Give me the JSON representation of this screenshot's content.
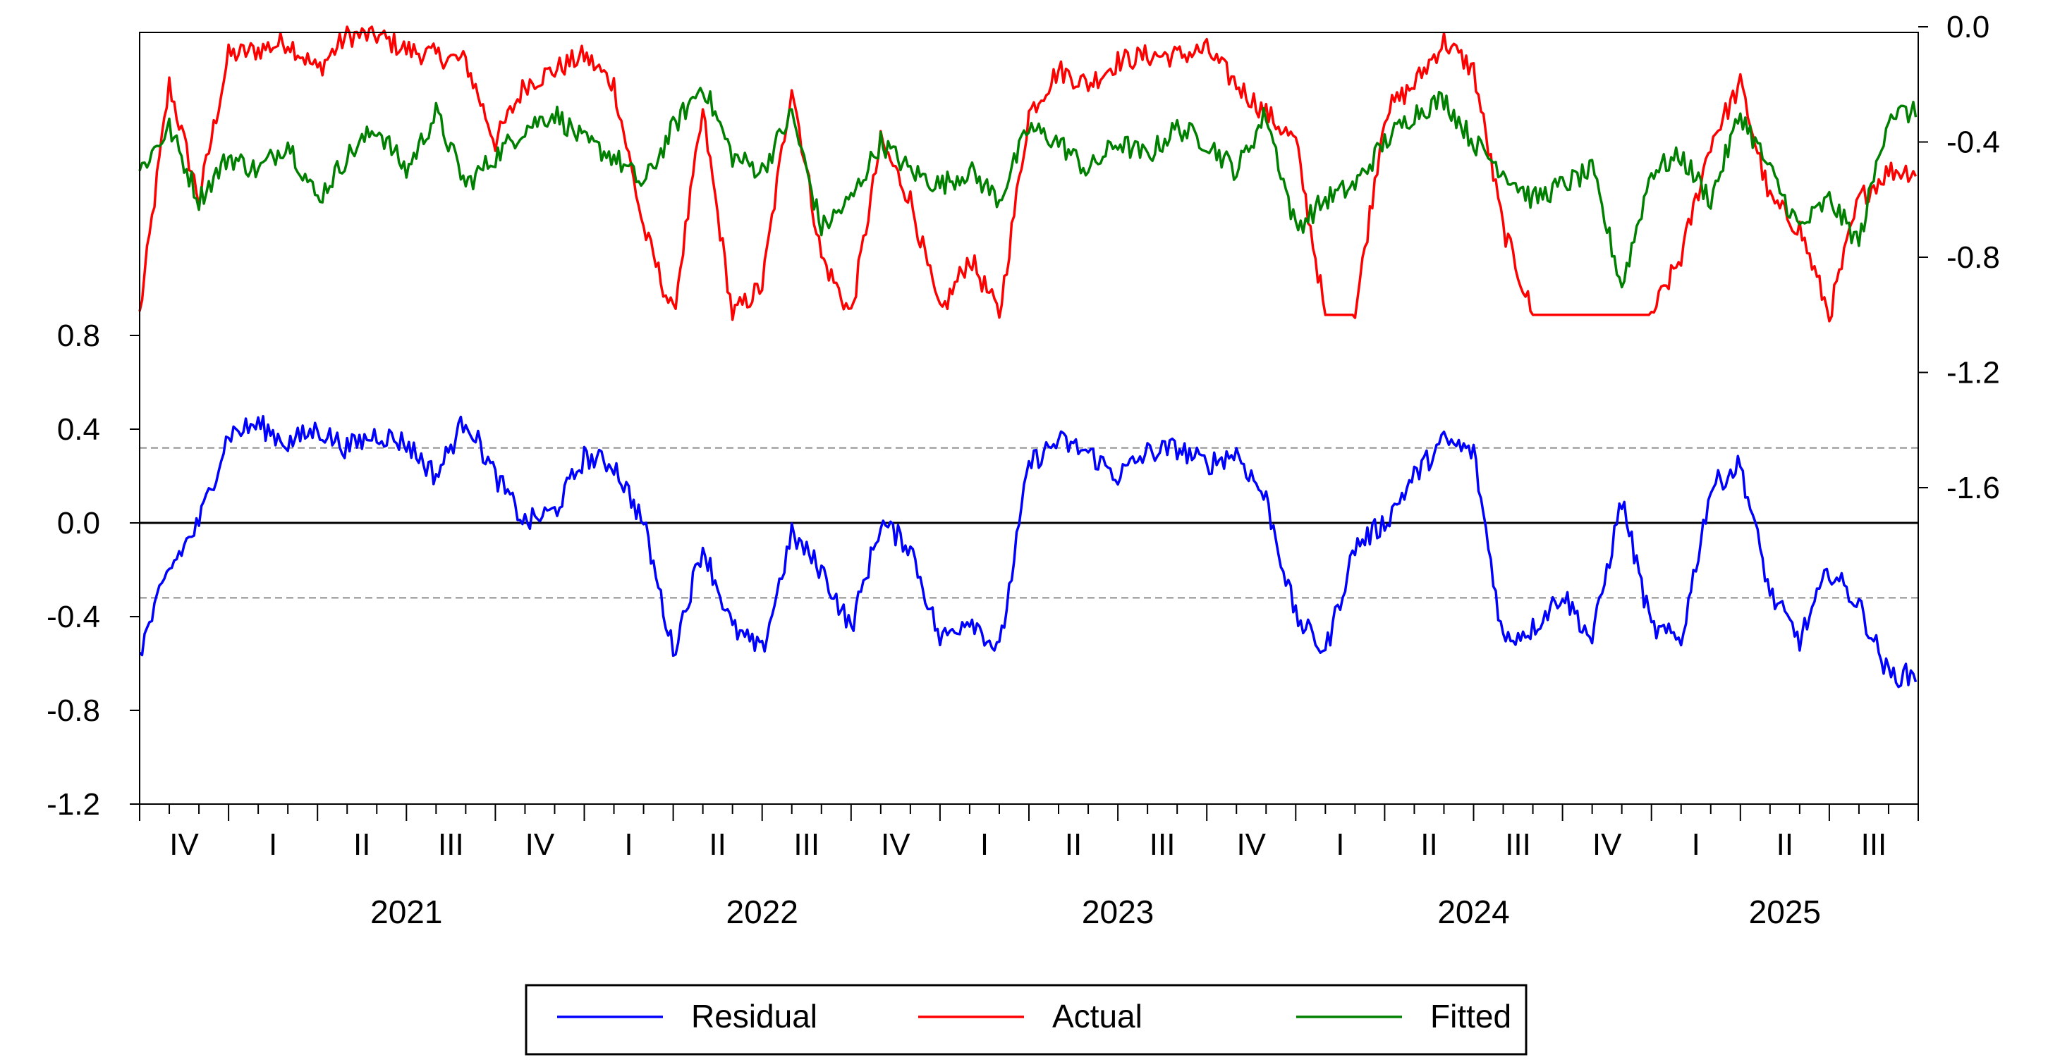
{
  "chart_data": {
    "type": "line",
    "title": "",
    "x_axis": {
      "quarter_labels": [
        "IV",
        "I",
        "II",
        "III",
        "IV",
        "I",
        "II",
        "III",
        "IV",
        "I",
        "II",
        "III",
        "IV",
        "I",
        "II",
        "III",
        "IV",
        "I",
        "II",
        "III"
      ],
      "year_labels": [
        "2021",
        "2022",
        "2023",
        "2024",
        "2025"
      ],
      "start": "2020-10",
      "end": "2025-09"
    },
    "left_axis": {
      "ticks": [
        "0.8",
        "0.4",
        "0.0",
        "-0.4",
        "-0.8",
        "-1.2"
      ],
      "range": [
        -1.2,
        0.8
      ],
      "applies_to": "Residual"
    },
    "right_axis": {
      "ticks": [
        "0.0",
        "-0.4",
        "-0.8",
        "-1.2",
        "-1.6"
      ],
      "range": [
        -1.6,
        0.0
      ],
      "applies_to": [
        "Actual",
        "Fitted"
      ]
    },
    "reference_lines": {
      "zero": 0.0,
      "std_band": [
        0.32,
        -0.32
      ]
    },
    "legend": {
      "position": "bottom-center"
    },
    "series": [
      {
        "name": "Residual",
        "color": "#0000ff",
        "axis": "left",
        "x": [
          "2020-10",
          "2020-11",
          "2020-12",
          "2021-01",
          "2021-02",
          "2021-03",
          "2021-04",
          "2021-05",
          "2021-06",
          "2021-07",
          "2021-08",
          "2021-09",
          "2021-10",
          "2021-11",
          "2021-12",
          "2022-01",
          "2022-02",
          "2022-03",
          "2022-04",
          "2022-05",
          "2022-06",
          "2022-07",
          "2022-08",
          "2022-09",
          "2022-10",
          "2022-11",
          "2022-12",
          "2023-01",
          "2023-02",
          "2023-03",
          "2023-04",
          "2023-05",
          "2023-06",
          "2023-07",
          "2023-08",
          "2023-09",
          "2023-10",
          "2023-11",
          "2023-12",
          "2024-01",
          "2024-02",
          "2024-03",
          "2024-04",
          "2024-05",
          "2024-06",
          "2024-07",
          "2024-08",
          "2024-09",
          "2024-10",
          "2024-11",
          "2024-12",
          "2025-01",
          "2025-02",
          "2025-03",
          "2025-04",
          "2025-05",
          "2025-06",
          "2025-07",
          "2025-08",
          "2025-09"
        ],
        "values": [
          -0.55,
          -0.2,
          0.0,
          0.38,
          0.42,
          0.34,
          0.4,
          0.32,
          0.38,
          0.34,
          0.2,
          0.45,
          0.2,
          0.0,
          0.05,
          0.28,
          0.25,
          0.0,
          -0.55,
          -0.1,
          -0.45,
          -0.55,
          -0.05,
          -0.2,
          -0.45,
          0.0,
          -0.1,
          -0.5,
          -0.4,
          -0.55,
          0.25,
          0.35,
          0.3,
          0.2,
          0.3,
          0.32,
          0.25,
          0.3,
          0.1,
          -0.4,
          -0.55,
          -0.1,
          0.0,
          0.2,
          0.35,
          0.3,
          -0.5,
          -0.45,
          -0.3,
          -0.5,
          0.1,
          -0.45,
          -0.5,
          0.15,
          0.25,
          -0.3,
          -0.5,
          -0.2,
          -0.35,
          -0.65
        ]
      },
      {
        "name": "Actual",
        "color": "#ff0000",
        "axis": "right",
        "x": [
          "2020-10",
          "2020-11",
          "2020-12",
          "2021-01",
          "2021-02",
          "2021-03",
          "2021-04",
          "2021-05",
          "2021-06",
          "2021-07",
          "2021-08",
          "2021-09",
          "2021-10",
          "2021-11",
          "2021-12",
          "2022-01",
          "2022-02",
          "2022-03",
          "2022-04",
          "2022-05",
          "2022-06",
          "2022-07",
          "2022-08",
          "2022-09",
          "2022-10",
          "2022-11",
          "2022-12",
          "2023-01",
          "2023-02",
          "2023-03",
          "2023-04",
          "2023-05",
          "2023-06",
          "2023-07",
          "2023-08",
          "2023-09",
          "2023-10",
          "2023-11",
          "2023-12",
          "2024-01",
          "2024-02",
          "2024-03",
          "2024-04",
          "2024-05",
          "2024-06",
          "2024-07",
          "2024-08",
          "2024-09",
          "2024-10",
          "2024-11",
          "2024-12",
          "2025-01",
          "2025-02",
          "2025-03",
          "2025-04",
          "2025-05",
          "2025-06",
          "2025-07",
          "2025-08",
          "2025-09"
        ],
        "values": [
          -1.0,
          -0.2,
          -0.6,
          -0.1,
          -0.08,
          -0.05,
          -0.15,
          -0.03,
          -0.03,
          -0.08,
          -0.1,
          -0.12,
          -0.4,
          -0.2,
          -0.15,
          -0.1,
          -0.2,
          -0.7,
          -1.0,
          -0.3,
          -1.0,
          -0.9,
          -0.2,
          -0.8,
          -1.0,
          -0.4,
          -0.6,
          -1.0,
          -0.8,
          -1.0,
          -0.3,
          -0.15,
          -0.2,
          -0.12,
          -0.1,
          -0.1,
          -0.08,
          -0.2,
          -0.3,
          -0.4,
          -1.0,
          -1.0,
          -0.3,
          -0.2,
          -0.05,
          -0.15,
          -0.7,
          -1.0,
          -1.0,
          -1.0,
          -1.0,
          -1.0,
          -0.8,
          -0.4,
          -0.2,
          -0.6,
          -0.7,
          -1.0,
          -0.6,
          -0.5
        ]
      },
      {
        "name": "Fitted",
        "color": "#008000",
        "axis": "right",
        "x": [
          "2020-10",
          "2020-11",
          "2020-12",
          "2021-01",
          "2021-02",
          "2021-03",
          "2021-04",
          "2021-05",
          "2021-06",
          "2021-07",
          "2021-08",
          "2021-09",
          "2021-10",
          "2021-11",
          "2021-12",
          "2022-01",
          "2022-02",
          "2022-03",
          "2022-04",
          "2022-05",
          "2022-06",
          "2022-07",
          "2022-08",
          "2022-09",
          "2022-10",
          "2022-11",
          "2022-12",
          "2023-01",
          "2023-02",
          "2023-03",
          "2023-04",
          "2023-05",
          "2023-06",
          "2023-07",
          "2023-08",
          "2023-09",
          "2023-10",
          "2023-11",
          "2023-12",
          "2024-01",
          "2024-02",
          "2024-03",
          "2024-04",
          "2024-05",
          "2024-06",
          "2024-07",
          "2024-08",
          "2024-09",
          "2024-10",
          "2024-11",
          "2024-12",
          "2025-01",
          "2025-02",
          "2025-03",
          "2025-04",
          "2025-05",
          "2025-06",
          "2025-07",
          "2025-08",
          "2025-09"
        ],
        "values": [
          -0.5,
          -0.35,
          -0.6,
          -0.45,
          -0.5,
          -0.4,
          -0.6,
          -0.45,
          -0.35,
          -0.5,
          -0.3,
          -0.55,
          -0.45,
          -0.35,
          -0.3,
          -0.4,
          -0.45,
          -0.55,
          -0.35,
          -0.2,
          -0.45,
          -0.5,
          -0.3,
          -0.7,
          -0.6,
          -0.4,
          -0.5,
          -0.55,
          -0.5,
          -0.6,
          -0.35,
          -0.4,
          -0.5,
          -0.4,
          -0.45,
          -0.35,
          -0.4,
          -0.5,
          -0.3,
          -0.7,
          -0.6,
          -0.55,
          -0.4,
          -0.3,
          -0.25,
          -0.4,
          -0.5,
          -0.6,
          -0.55,
          -0.5,
          -0.9,
          -0.5,
          -0.45,
          -0.6,
          -0.3,
          -0.5,
          -0.7,
          -0.6,
          -0.75,
          -0.3
        ]
      }
    ]
  }
}
